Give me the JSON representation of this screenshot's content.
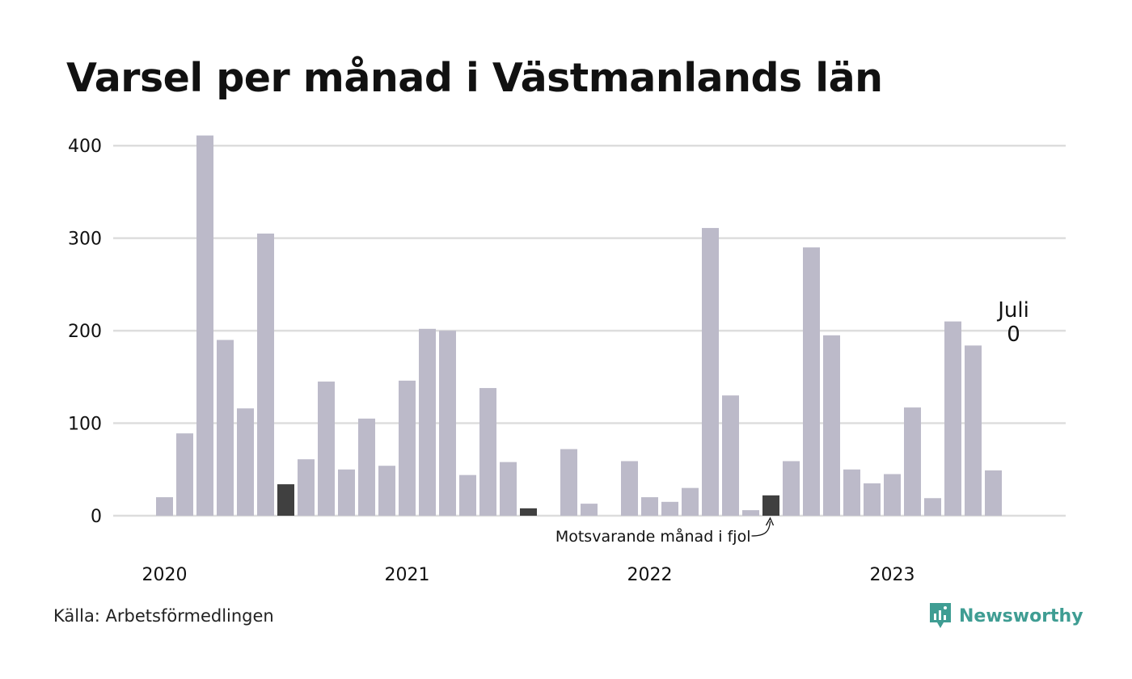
{
  "title": "Varsel per månad i Västmanlands län",
  "source": "Källa: Arbetsförmedlingen",
  "brand": {
    "name": "Newsworthy",
    "icon": "newsworthy-logo-icon",
    "color": "#3f9d93"
  },
  "colors": {
    "bar": "#bcbac9",
    "highlight": "#404040",
    "grid": "#dddddd",
    "text": "#111111"
  },
  "chart_data": {
    "type": "bar",
    "title": "Varsel per månad i Västmanlands län",
    "xlabel": "",
    "ylabel": "",
    "ylim": [
      0,
      420
    ],
    "yticks": [
      0,
      100,
      200,
      300,
      400
    ],
    "grid": true,
    "year_labels": [
      {
        "label": "2020",
        "month_index": 0
      },
      {
        "label": "2021",
        "month_index": 12
      },
      {
        "label": "2022",
        "month_index": 24
      },
      {
        "label": "2023",
        "month_index": 36
      }
    ],
    "months": [
      "2020-01",
      "2020-02",
      "2020-03",
      "2020-04",
      "2020-05",
      "2020-06",
      "2020-07",
      "2020-08",
      "2020-09",
      "2020-10",
      "2020-11",
      "2020-12",
      "2021-01",
      "2021-02",
      "2021-03",
      "2021-04",
      "2021-05",
      "2021-06",
      "2021-07",
      "2021-08",
      "2021-09",
      "2021-10",
      "2021-11",
      "2021-12",
      "2022-01",
      "2022-02",
      "2022-03",
      "2022-04",
      "2022-05",
      "2022-06",
      "2022-07",
      "2022-08",
      "2022-09",
      "2022-10",
      "2022-11",
      "2022-12",
      "2023-01",
      "2023-02",
      "2023-03",
      "2023-04",
      "2023-05",
      "2023-06",
      "2023-07"
    ],
    "values": [
      20,
      89,
      411,
      190,
      116,
      305,
      34,
      61,
      145,
      50,
      105,
      54,
      146,
      202,
      200,
      44,
      138,
      58,
      8,
      0,
      72,
      13,
      0,
      59,
      20,
      15,
      30,
      311,
      130,
      6,
      22,
      59,
      290,
      195,
      50,
      35,
      45,
      117,
      19,
      210,
      184,
      49,
      0
    ],
    "highlight_indices": [
      6,
      18,
      30
    ],
    "current": {
      "label": "Juli",
      "value": "0"
    },
    "annotation": {
      "text": "Motsvarande månad i fjol",
      "month_index": 30
    }
  }
}
